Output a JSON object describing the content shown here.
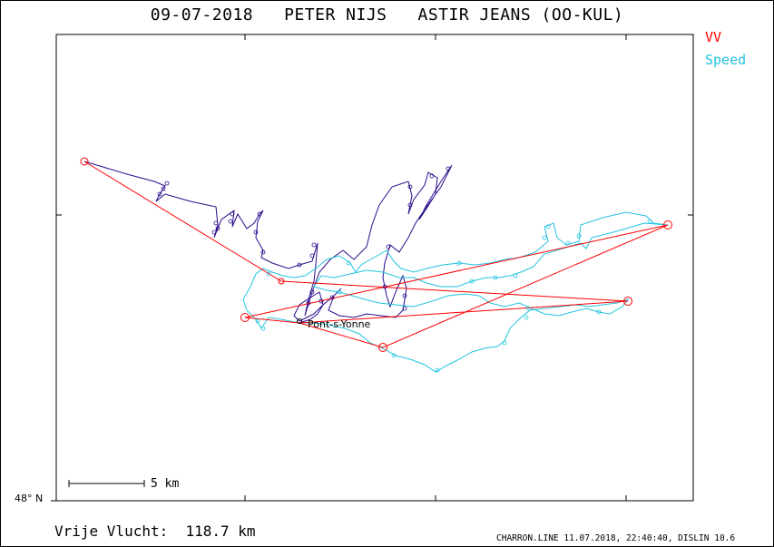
{
  "header": {
    "title": "09-07-2018   PETER NIJS   ASTIR JEANS (OO-KUL)"
  },
  "legend": {
    "items": [
      {
        "label": "VV",
        "color": "#ff0000"
      },
      {
        "label": "Speed",
        "color": "#00c8e6"
      }
    ]
  },
  "colors": {
    "track_purple": "#2a0a8a",
    "track_cyan": "#22c4e0",
    "task_red": "#ff0000",
    "frame": "#000000"
  },
  "map": {
    "lat_label": "48° N",
    "scale_label": "5 km",
    "town_label": "Pont-s-Yonne"
  },
  "footer": {
    "distance": "Vrije Vlucht:  118.7 km",
    "info": "CHARRON.LINE 11.07.2018, 22:40:40, DISLIN 10.6"
  }
}
